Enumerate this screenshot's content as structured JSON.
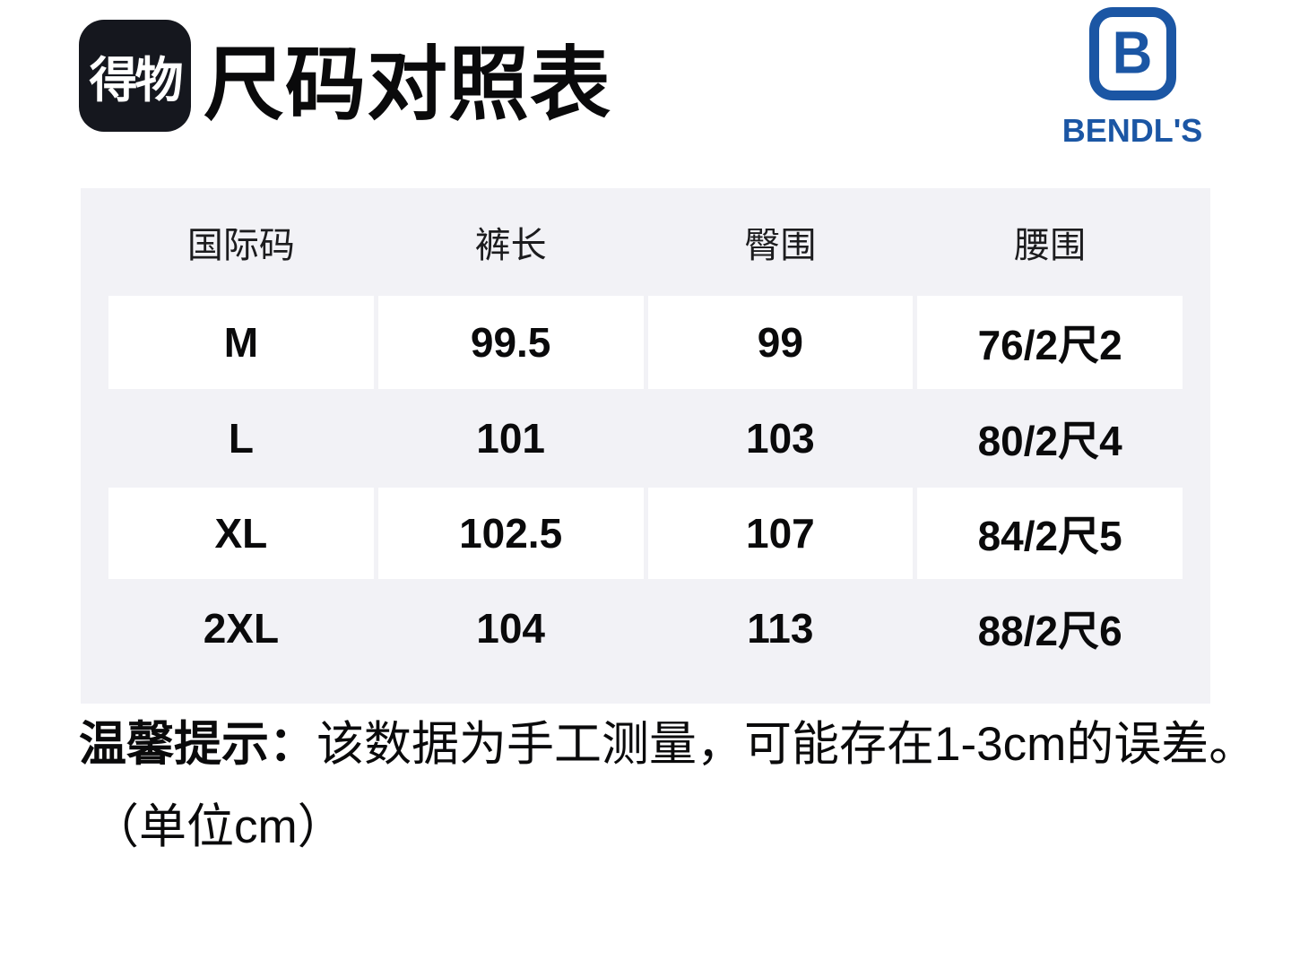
{
  "app": {
    "logo_text": "得物"
  },
  "title": "尺码对照表",
  "brand": {
    "mark_letter": "B",
    "name": "BENDL'S"
  },
  "table": {
    "columns": [
      {
        "key": "size",
        "label": "国际码"
      },
      {
        "key": "length",
        "label": "裤长"
      },
      {
        "key": "hip",
        "label": "臀围"
      },
      {
        "key": "waist",
        "label": "腰围"
      }
    ],
    "rows": [
      {
        "size": "M",
        "length": "99.5",
        "hip": "99",
        "waist": "76/2尺2"
      },
      {
        "size": "L",
        "length": "101",
        "hip": "103",
        "waist": "80/2尺4"
      },
      {
        "size": "XL",
        "length": "102.5",
        "hip": "107",
        "waist": "84/2尺5"
      },
      {
        "size": "2XL",
        "length": "104",
        "hip": "113",
        "waist": "88/2尺6"
      }
    ]
  },
  "note": {
    "label": "温馨提示：",
    "text": "该数据为手工测量，可能存在1-3cm的误差。",
    "unit": "（单位cm）"
  },
  "colors": {
    "brand_blue": "#1b56a4",
    "logo_dark": "#15171e",
    "table_bg": "#f2f2f6"
  }
}
